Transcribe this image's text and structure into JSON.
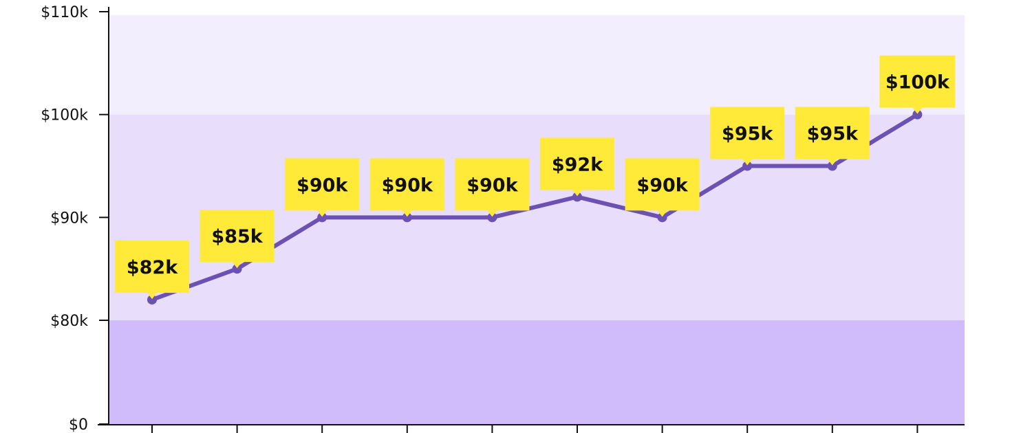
{
  "chart_data": {
    "type": "line",
    "x": [
      1,
      2,
      3,
      4,
      5,
      6,
      7,
      8,
      9,
      10
    ],
    "values": [
      82,
      85,
      90,
      90,
      90,
      92,
      90,
      95,
      95,
      100
    ],
    "value_labels": [
      "$82k",
      "$85k",
      "$90k",
      "$90k",
      "$90k",
      "$92k",
      "$90k",
      "$95k",
      "$95k",
      "$100k"
    ],
    "y_ticks": [
      0,
      80,
      90,
      100,
      110
    ],
    "y_tick_labels": [
      "$0",
      "$80k",
      "$90k",
      "$100k",
      "$110k"
    ],
    "y_scale": "piecewise linear: $0–$80k compressed, $80k–$110k expanded",
    "ylim": [
      0,
      110
    ],
    "x_tick_labels": [
      "",
      "",
      "",
      "",
      "",
      "",
      "",
      "",
      "",
      ""
    ],
    "bands": [
      {
        "from": 0,
        "to": 80,
        "color": "#d0bbfb"
      },
      {
        "from": 80,
        "to": 100,
        "color": "#e8defc"
      },
      {
        "from": 100,
        "to": 110,
        "color": "#f2eefd"
      }
    ],
    "title": "",
    "xlabel": "",
    "ylabel": "",
    "grid": false,
    "legend": "none",
    "colors": {
      "line": "#6a51b2",
      "label_bg": "#ffea3a",
      "axis": "#111111"
    }
  }
}
